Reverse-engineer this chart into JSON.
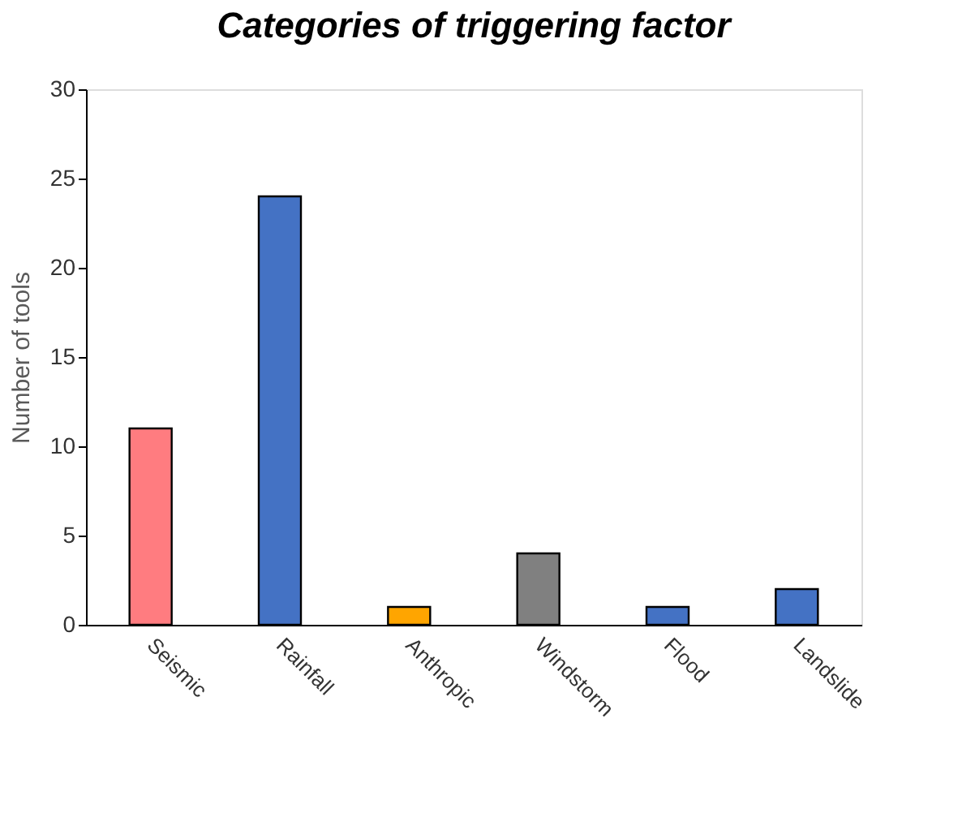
{
  "chart_data": {
    "type": "bar",
    "title": "Categories of triggering factor",
    "ylabel": "Number of tools",
    "categories": [
      "Seismic",
      "Rainfall",
      "Anthropic",
      "Windstorm",
      "Flood",
      "Landslide"
    ],
    "values": [
      11,
      24,
      1,
      4,
      1,
      2
    ],
    "colors": [
      "#ff7c80",
      "#4472c4",
      "#ffa500",
      "#808080",
      "#4472c4",
      "#4472c4"
    ],
    "ylim": [
      0,
      30
    ],
    "yticks": [
      0,
      5,
      10,
      15,
      20,
      25,
      30
    ],
    "grid": false,
    "legend": false
  }
}
